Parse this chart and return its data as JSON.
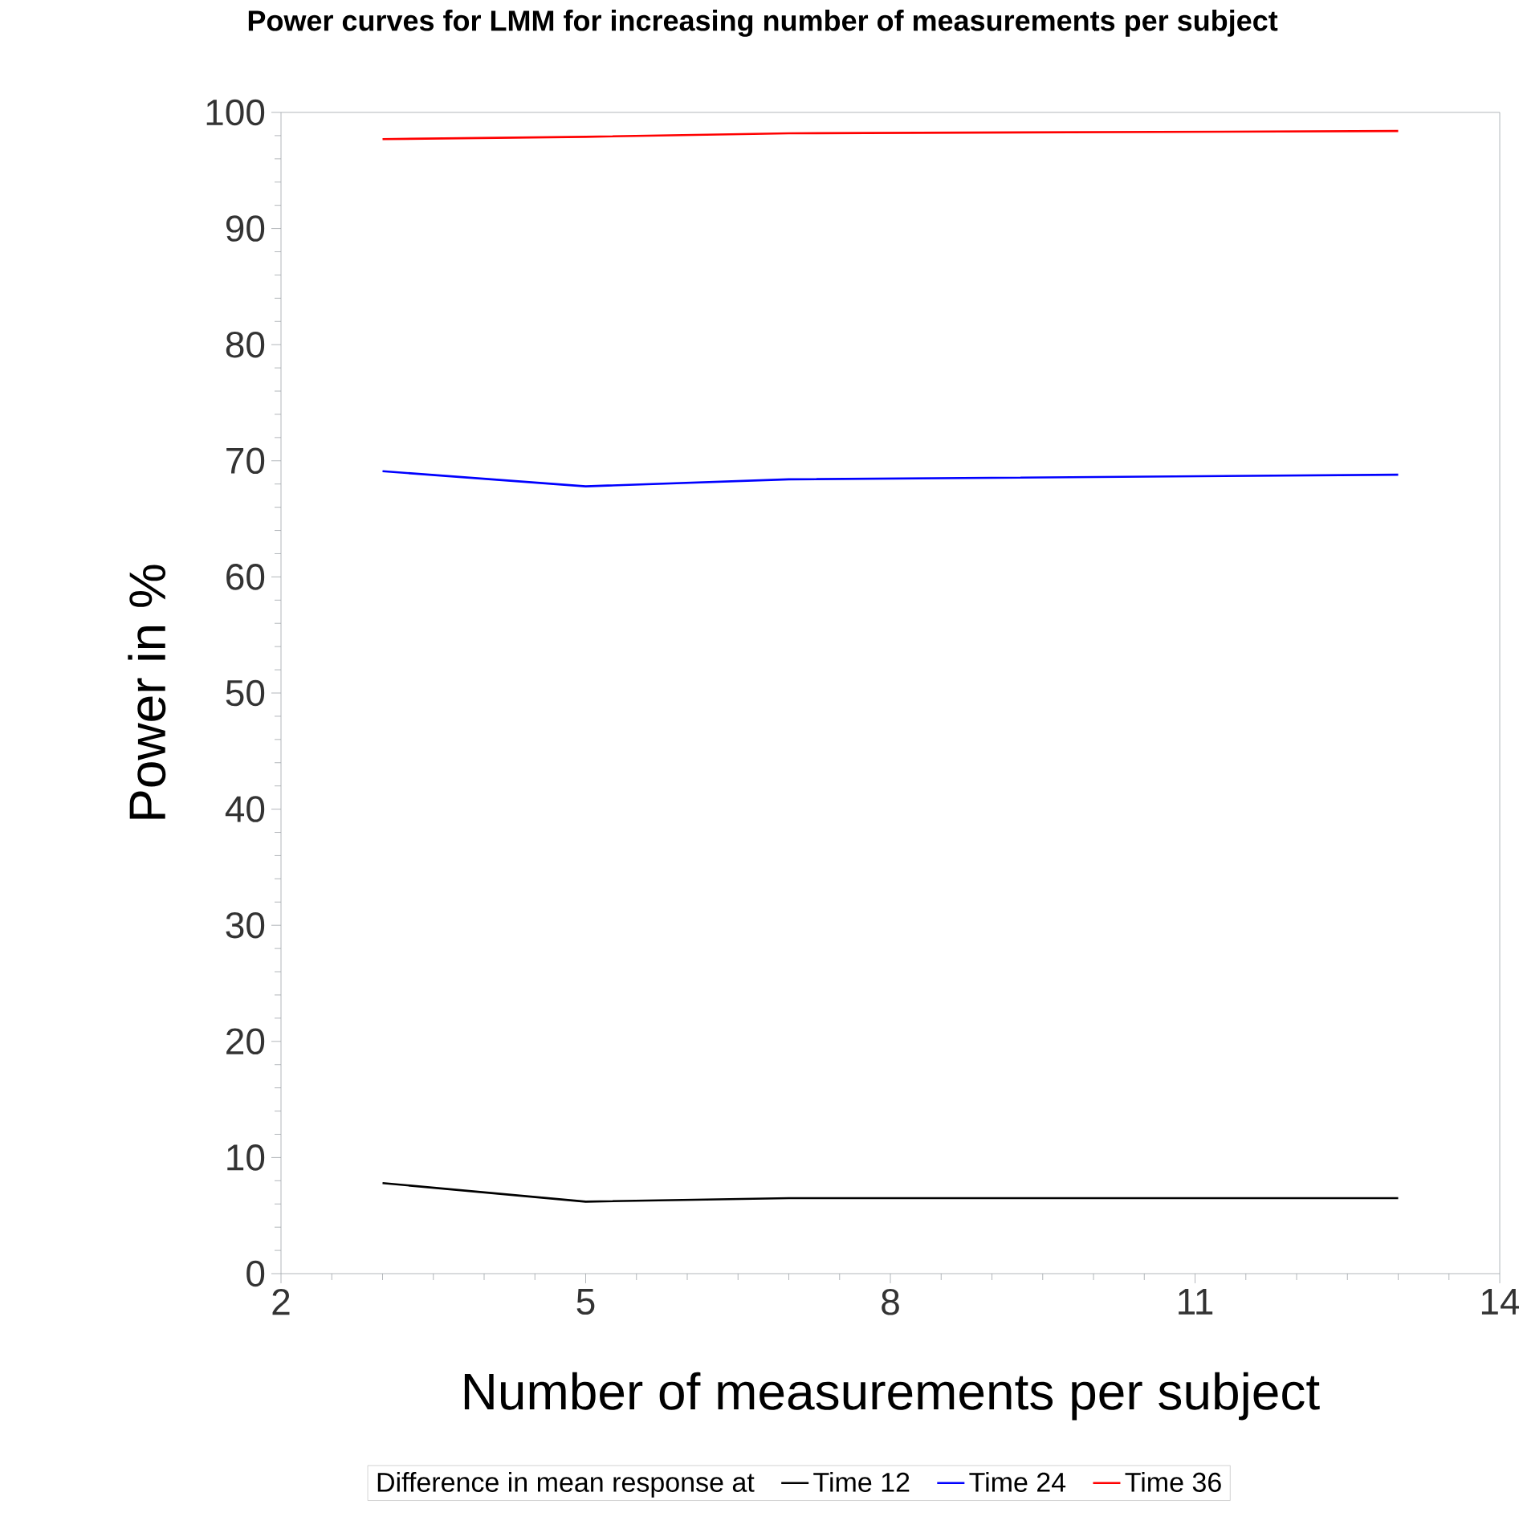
{
  "chart_data": {
    "type": "line",
    "title": "Power curves for LMM for increasing number of measurements per subject",
    "xlabel": "Number of measurements per subject",
    "ylabel": "Power in %",
    "legend_title": "Difference in mean response at",
    "legend": "bottom",
    "grid": false,
    "marker": "none",
    "line_style": "solid",
    "xlim": [
      2,
      14
    ],
    "xticks": [
      2,
      5,
      8,
      11,
      14
    ],
    "ylim": [
      0,
      100
    ],
    "yticks": [
      0,
      10,
      20,
      30,
      40,
      50,
      60,
      70,
      80,
      90,
      100
    ],
    "x": [
      3,
      5,
      7,
      13
    ],
    "series": [
      {
        "name": "Time 12",
        "color": "#000000",
        "values": [
          7.8,
          6.2,
          6.5,
          6.5
        ]
      },
      {
        "name": "Time 24",
        "color": "#0000ff",
        "values": [
          69.1,
          67.8,
          68.4,
          68.8
        ]
      },
      {
        "name": "Time 36",
        "color": "#ff0000",
        "values": [
          97.7,
          97.9,
          98.2,
          98.4
        ]
      }
    ]
  }
}
